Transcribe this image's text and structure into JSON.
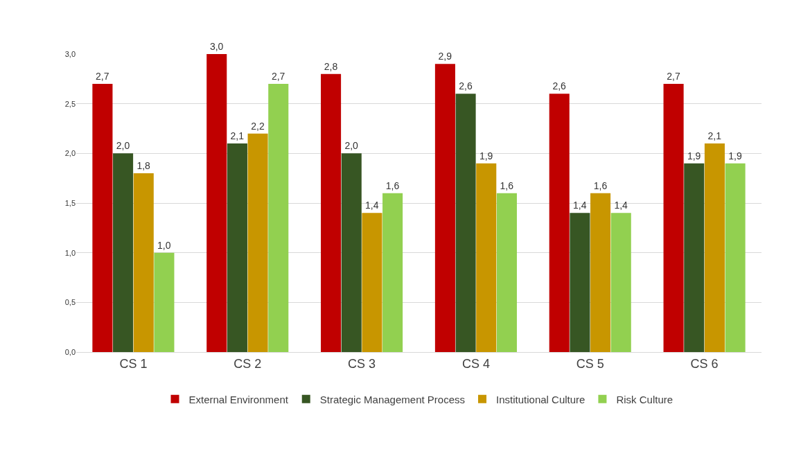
{
  "chart_data": {
    "type": "bar",
    "categories": [
      "CS 1",
      "CS 2",
      "CS 3",
      "CS 4",
      "CS 5",
      "CS 6"
    ],
    "series": [
      {
        "name": "External Environment",
        "color": "#c00000",
        "values": [
          2.7,
          3.0,
          2.8,
          2.9,
          2.6,
          2.7
        ],
        "value_labels": [
          "2,7",
          "3,0",
          "2,8",
          "2,9",
          "2,6",
          "2,7"
        ]
      },
      {
        "name": "Strategic Management Process",
        "color": "#375623",
        "values": [
          2.0,
          2.1,
          2.0,
          2.6,
          1.4,
          1.9
        ],
        "value_labels": [
          "2,0",
          "2,1",
          "2,0",
          "2,6",
          "1,4",
          "1,9"
        ]
      },
      {
        "name": "Institutional Culture",
        "color": "#c89600",
        "values": [
          1.8,
          2.2,
          1.4,
          1.9,
          1.6,
          2.1
        ],
        "value_labels": [
          "1,8",
          "2,2",
          "1,4",
          "1,9",
          "1,6",
          "2,1"
        ]
      },
      {
        "name": "Risk Culture",
        "color": "#92d050",
        "values": [
          1.0,
          2.7,
          1.6,
          1.6,
          1.4,
          1.9
        ],
        "value_labels": [
          "1,0",
          "2,7",
          "1,6",
          "1,6",
          "1,4",
          "1,9"
        ]
      }
    ],
    "ylim": [
      0,
      3.0
    ],
    "yticks": [
      {
        "value": 0,
        "label": "0,0"
      },
      {
        "value": 0.5,
        "label": "0,5"
      },
      {
        "value": 1.0,
        "label": "1,0"
      },
      {
        "value": 1.5,
        "label": "1,5"
      },
      {
        "value": 2.0,
        "label": "2,0"
      },
      {
        "value": 2.5,
        "label": "2,5"
      },
      {
        "value": 3.0,
        "label": "3,0"
      }
    ],
    "grid": "y",
    "legend": "bottom"
  }
}
